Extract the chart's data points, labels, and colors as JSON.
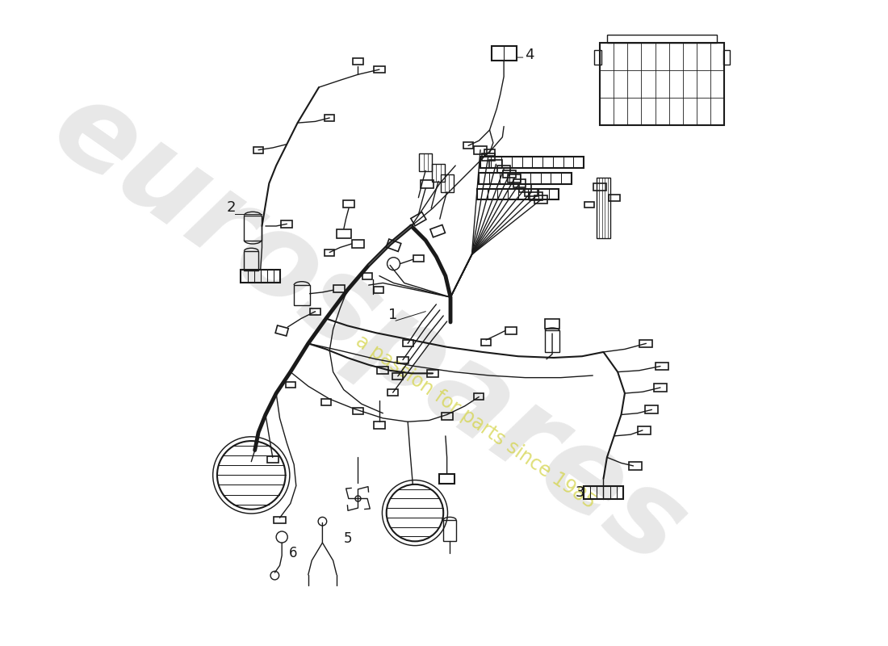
{
  "bg_color": "#ffffff",
  "line_color": "#1a1a1a",
  "watermark1": "eurospares",
  "watermark2": "a passion for parts since 1985",
  "wm1_color": "#cccccc",
  "wm2_color": "#d4d44a",
  "figsize": [
    11.0,
    8.0
  ],
  "dpi": 100
}
